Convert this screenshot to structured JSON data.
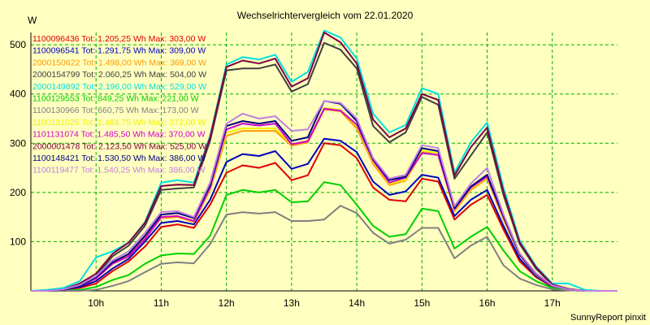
{
  "chart_data": {
    "type": "line",
    "title": "Wechselrichtervergleich vom 22.01.2020",
    "ylabel": "W",
    "footer": "SunnyReport pinxit",
    "xlim": [
      9.0,
      18.0
    ],
    "ylim": [
      0,
      525
    ],
    "x_ticks": [
      {
        "value": 10,
        "label": "10h"
      },
      {
        "value": 11,
        "label": "11h"
      },
      {
        "value": 12,
        "label": "12h"
      },
      {
        "value": 13,
        "label": "13h"
      },
      {
        "value": 14,
        "label": "14h"
      },
      {
        "value": 15,
        "label": "15h"
      },
      {
        "value": 16,
        "label": "16h"
      },
      {
        "value": 17,
        "label": "17h"
      }
    ],
    "y_ticks": [
      {
        "value": 100,
        "label": "100"
      },
      {
        "value": 200,
        "label": "200"
      },
      {
        "value": 300,
        "label": "300"
      },
      {
        "value": 400,
        "label": "400"
      },
      {
        "value": 500,
        "label": "500"
      }
    ],
    "grid": true,
    "legend_position": "top-left",
    "x": [
      9.0,
      9.25,
      9.5,
      9.75,
      10.0,
      10.25,
      10.5,
      10.75,
      11.0,
      11.25,
      11.5,
      11.75,
      12.0,
      12.25,
      12.5,
      12.75,
      13.0,
      13.25,
      13.5,
      13.75,
      14.0,
      14.25,
      14.5,
      14.75,
      15.0,
      15.25,
      15.5,
      15.75,
      16.0,
      16.25,
      16.5,
      16.75,
      17.0,
      17.25,
      17.5,
      17.75,
      18.0
    ],
    "series": [
      {
        "label": "1100096436 Tot: 1.205,25 Wh Max: 303,00 W",
        "color": "#e00000",
        "values": [
          0,
          0,
          2,
          6,
          15,
          40,
          60,
          90,
          130,
          135,
          128,
          175,
          240,
          255,
          250,
          260,
          225,
          235,
          300,
          296,
          270,
          210,
          185,
          182,
          228,
          222,
          145,
          175,
          195,
          125,
          60,
          28,
          8,
          3,
          0,
          0,
          0
        ]
      },
      {
        "label": "1100096541 Tot: 1.291,75 Wh Max: 309,00 W",
        "color": "#0000c0",
        "values": [
          0,
          0,
          2,
          8,
          20,
          45,
          65,
          100,
          138,
          142,
          135,
          185,
          262,
          278,
          274,
          284,
          248,
          258,
          309,
          305,
          282,
          222,
          195,
          202,
          236,
          230,
          152,
          185,
          205,
          132,
          65,
          30,
          9,
          3,
          0,
          0,
          0
        ]
      },
      {
        "label": "2000150622 Tot: 1.498,00 Wh Max: 369,00 W",
        "color": "#ff9900",
        "values": [
          0,
          0,
          2,
          10,
          25,
          55,
          72,
          108,
          148,
          150,
          140,
          205,
          315,
          325,
          325,
          325,
          295,
          302,
          369,
          365,
          330,
          258,
          215,
          224,
          282,
          276,
          162,
          205,
          228,
          145,
          72,
          33,
          10,
          3,
          0,
          0,
          0
        ]
      },
      {
        "label": "2000154799 Tot: 2.060,25 Wh Max: 504,00 W",
        "color": "#404040",
        "values": [
          0,
          0,
          3,
          12,
          30,
          70,
          92,
          132,
          205,
          208,
          210,
          305,
          448,
          452,
          452,
          460,
          405,
          420,
          504,
          490,
          452,
          335,
          302,
          322,
          394,
          378,
          228,
          275,
          322,
          195,
          95,
          45,
          12,
          4,
          0,
          0,
          0
        ]
      },
      {
        "label": "2000149892 Tot: 2.196,00 Wh Max: 529,00 W",
        "color": "#00e0e0",
        "values": [
          0,
          2,
          6,
          20,
          68,
          80,
          98,
          140,
          220,
          225,
          220,
          315,
          460,
          475,
          470,
          480,
          425,
          445,
          529,
          515,
          472,
          360,
          322,
          337,
          412,
          400,
          240,
          302,
          342,
          210,
          102,
          50,
          15,
          15,
          2,
          0,
          0
        ]
      },
      {
        "label": "1100129553 Tot: 849,25 Wh Max: 221,00 W",
        "color": "#00d000",
        "values": [
          0,
          0,
          0,
          2,
          8,
          22,
          32,
          55,
          72,
          76,
          75,
          112,
          195,
          205,
          200,
          205,
          180,
          182,
          221,
          215,
          175,
          132,
          110,
          115,
          167,
          162,
          86,
          110,
          130,
          82,
          40,
          20,
          6,
          2,
          0,
          0,
          0
        ]
      },
      {
        "label": "1100130966 Tot: 660,75 Wh Max: 173,00 W",
        "color": "#808080",
        "values": [
          0,
          0,
          0,
          0,
          2,
          10,
          20,
          38,
          55,
          58,
          56,
          95,
          155,
          160,
          157,
          160,
          142,
          142,
          145,
          173,
          158,
          118,
          96,
          104,
          128,
          128,
          66,
          92,
          110,
          52,
          25,
          12,
          3,
          1,
          0,
          0,
          0
        ]
      },
      {
        "label": "1100131025 Tot: 1.484,75 Wh Max: 372,00 W",
        "color": "#f0f000",
        "values": [
          0,
          0,
          2,
          10,
          25,
          55,
          70,
          105,
          150,
          152,
          142,
          208,
          322,
          330,
          330,
          330,
          298,
          305,
          372,
          368,
          335,
          262,
          218,
          226,
          285,
          280,
          165,
          208,
          230,
          148,
          72,
          33,
          10,
          3,
          0,
          0,
          0
        ]
      },
      {
        "label": "1101131074 Tot: 1.485,50 Wh Max: 370,00 W",
        "color": "#d000d0",
        "values": [
          0,
          0,
          2,
          10,
          25,
          55,
          70,
          105,
          150,
          152,
          142,
          210,
          328,
          340,
          336,
          340,
          298,
          304,
          370,
          366,
          338,
          265,
          220,
          230,
          280,
          276,
          166,
          210,
          232,
          150,
          73,
          34,
          10,
          3,
          0,
          0,
          0
        ]
      },
      {
        "label": "2000001478 Tot: 2.123,50 Wh Max: 525,00 W",
        "color": "#800040",
        "values": [
          0,
          0,
          3,
          15,
          35,
          75,
          98,
          138,
          213,
          216,
          215,
          312,
          455,
          468,
          462,
          472,
          415,
          432,
          525,
          505,
          462,
          348,
          312,
          330,
          400,
          388,
          234,
          292,
          332,
          202,
          98,
          48,
          13,
          4,
          0,
          0,
          0
        ]
      },
      {
        "label": "1100148421 Tot: 1.530,50 Wh Max: 386,00 W",
        "color": "#000080",
        "values": [
          0,
          0,
          2,
          10,
          28,
          58,
          75,
          112,
          155,
          158,
          148,
          215,
          335,
          345,
          340,
          345,
          305,
          312,
          386,
          380,
          345,
          268,
          225,
          232,
          290,
          284,
          168,
          212,
          236,
          152,
          74,
          35,
          11,
          3,
          0,
          0,
          0
        ]
      },
      {
        "label": "1100119477 Tot: 1.540,25 Wh Max: 386,00 W",
        "color": "#c080e0",
        "values": [
          0,
          0,
          3,
          12,
          30,
          62,
          80,
          118,
          160,
          162,
          150,
          220,
          340,
          360,
          350,
          355,
          325,
          328,
          386,
          382,
          350,
          270,
          228,
          236,
          296,
          290,
          172,
          218,
          250,
          156,
          76,
          36,
          11,
          3,
          0,
          0,
          0
        ]
      }
    ]
  }
}
